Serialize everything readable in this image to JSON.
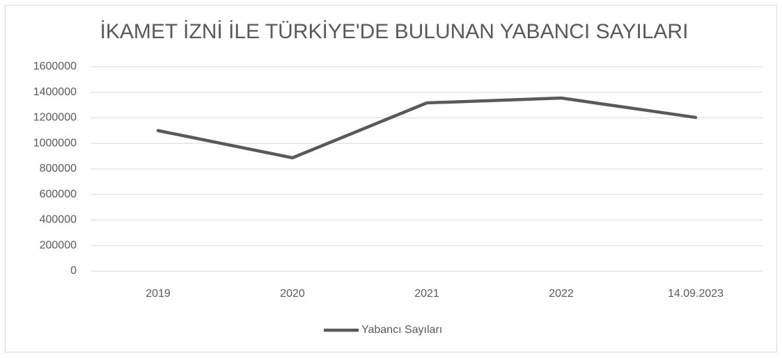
{
  "chart_data": {
    "type": "line",
    "title": "İKAMET İZNİ İLE TÜRKİYE'DE BULUNAN YABANCI SAYILARI",
    "categories": [
      "2019",
      "2020",
      "2021",
      "2022",
      "14.09.2023"
    ],
    "series": [
      {
        "name": "Yabancı Sayıları",
        "color": "#595959",
        "values": [
          1100000,
          887000,
          1317000,
          1355000,
          1203000
        ]
      }
    ],
    "ylim": [
      0,
      1600000
    ],
    "yticks": [
      0,
      200000,
      400000,
      600000,
      800000,
      1000000,
      1200000,
      1400000,
      1600000
    ],
    "grid": true,
    "legend": "bottom"
  }
}
